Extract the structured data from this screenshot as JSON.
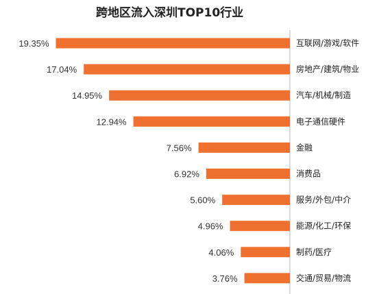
{
  "chart_data": {
    "type": "bar",
    "orientation": "horizontal",
    "title": "跨地区流入深圳TOP10行业",
    "categories": [
      "互联网/游戏/软件",
      "房地产/建筑/物业",
      "汽车/机械/制造",
      "电子通信硬件",
      "金融",
      "消费品",
      "服务/外包/中介",
      "能源/化工/环保",
      "制药/医疗",
      "交通/贸易/物流"
    ],
    "values": [
      19.35,
      17.04,
      14.95,
      12.94,
      7.56,
      6.92,
      5.6,
      4.96,
      4.06,
      3.76
    ],
    "value_labels": [
      "19.35%",
      "17.04%",
      "14.95%",
      "12.94%",
      "7.56%",
      "6.92%",
      "5.60%",
      "4.96%",
      "4.06%",
      "3.76%"
    ],
    "bar_color": "#F07030",
    "axis_color": "#BBBBBB",
    "grid": false,
    "legend": "none"
  }
}
